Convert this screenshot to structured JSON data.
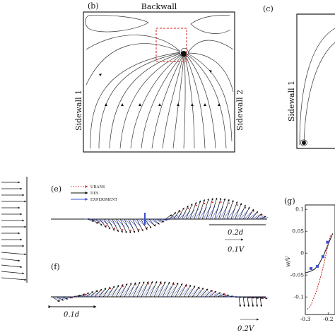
{
  "panels": {
    "b": {
      "label": "(b)",
      "top": "Backwall",
      "left": "Sidewall 1",
      "right": "Sidewall 2"
    },
    "c": {
      "label": "(c)",
      "left": "Sidewall 1"
    },
    "e": {
      "label": "(e)",
      "legend": [
        "URANS",
        "DES",
        "EXPERIMENT"
      ],
      "scale_len": "0.2d",
      "scale_vel": "0.1V"
    },
    "f": {
      "label": "(f)",
      "scale_len": "0.1d",
      "scale_vel": "0.2V"
    },
    "g": {
      "label": "(g)",
      "ylabel": "w/V",
      "yticks": [
        "0.1",
        "0.05",
        "0",
        "-0.05",
        "-0.1"
      ],
      "xticks": [
        "-0.3",
        "-0.2"
      ]
    }
  },
  "colors": {
    "urans": "#d42020",
    "des": "#111111",
    "experiment": "#3a4fd0"
  },
  "chart_data": {
    "type": "line",
    "title": "",
    "xlabel": "",
    "ylabel": "w/V",
    "xlim": [
      -0.3,
      -0.17
    ],
    "ylim": [
      -0.14,
      0.11
    ],
    "series": [
      {
        "name": "",
        "color": "#111111",
        "x": [
          -0.3,
          -0.28,
          -0.26,
          -0.24,
          -0.22,
          -0.2,
          -0.18
        ],
        "y": [
          -0.045,
          -0.042,
          -0.037,
          -0.025,
          -0.005,
          0.02,
          0.045
        ]
      },
      {
        "name": "",
        "color": "#d42020",
        "x": [
          -0.292,
          -0.285,
          -0.275,
          -0.265,
          -0.25,
          -0.235,
          -0.22,
          -0.205,
          -0.19
        ],
        "y": [
          -0.128,
          -0.125,
          -0.118,
          -0.105,
          -0.085,
          -0.058,
          -0.028,
          0.008,
          0.04
        ]
      },
      {
        "name": "",
        "color": "#3a4fd0",
        "marker": "square",
        "x": [
          -0.275,
          -0.247,
          -0.223,
          -0.203
        ],
        "y": [
          -0.035,
          -0.03,
          -0.008,
          0.025
        ]
      }
    ]
  }
}
